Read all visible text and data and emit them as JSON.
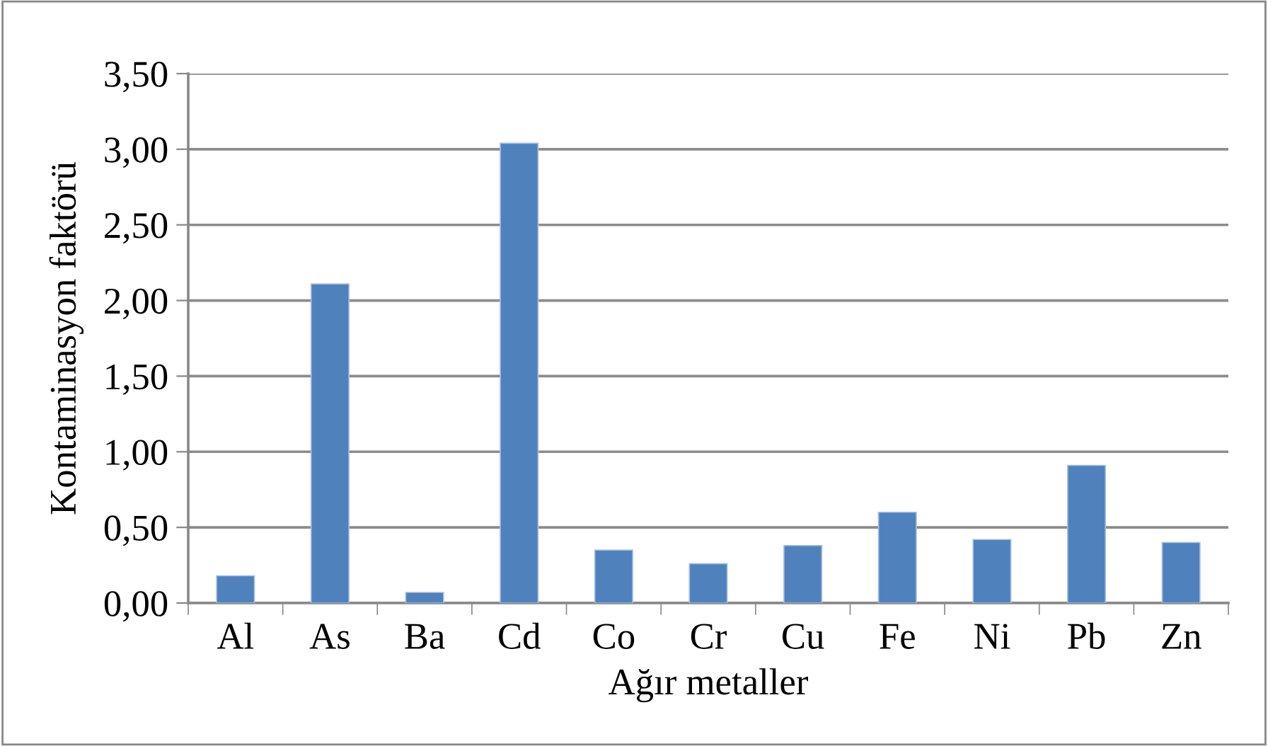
{
  "chart_data": {
    "type": "bar",
    "xlabel": "Ağır metaller",
    "ylabel": "Kontaminasyon faktörü",
    "categories": [
      "Al",
      "As",
      "Ba",
      "Cd",
      "Co",
      "Cr",
      "Cu",
      "Fe",
      "Ni",
      "Pb",
      "Zn"
    ],
    "values": [
      0.18,
      2.11,
      0.07,
      3.04,
      0.35,
      0.26,
      0.38,
      0.6,
      0.42,
      0.91,
      0.4
    ],
    "color": "#4f81bd",
    "ylim": [
      0,
      3.5
    ],
    "yticks": [
      {
        "value": 0,
        "label": "0,00"
      },
      {
        "value": 0.5,
        "label": "0,50"
      },
      {
        "value": 1.0,
        "label": "1,00"
      },
      {
        "value": 1.5,
        "label": "1,50"
      },
      {
        "value": 2.0,
        "label": "2,00"
      },
      {
        "value": 2.5,
        "label": "2,50"
      },
      {
        "value": 3.0,
        "label": "3,00"
      },
      {
        "value": 3.5,
        "label": "3,50"
      }
    ],
    "grid": "y",
    "legend": false
  }
}
